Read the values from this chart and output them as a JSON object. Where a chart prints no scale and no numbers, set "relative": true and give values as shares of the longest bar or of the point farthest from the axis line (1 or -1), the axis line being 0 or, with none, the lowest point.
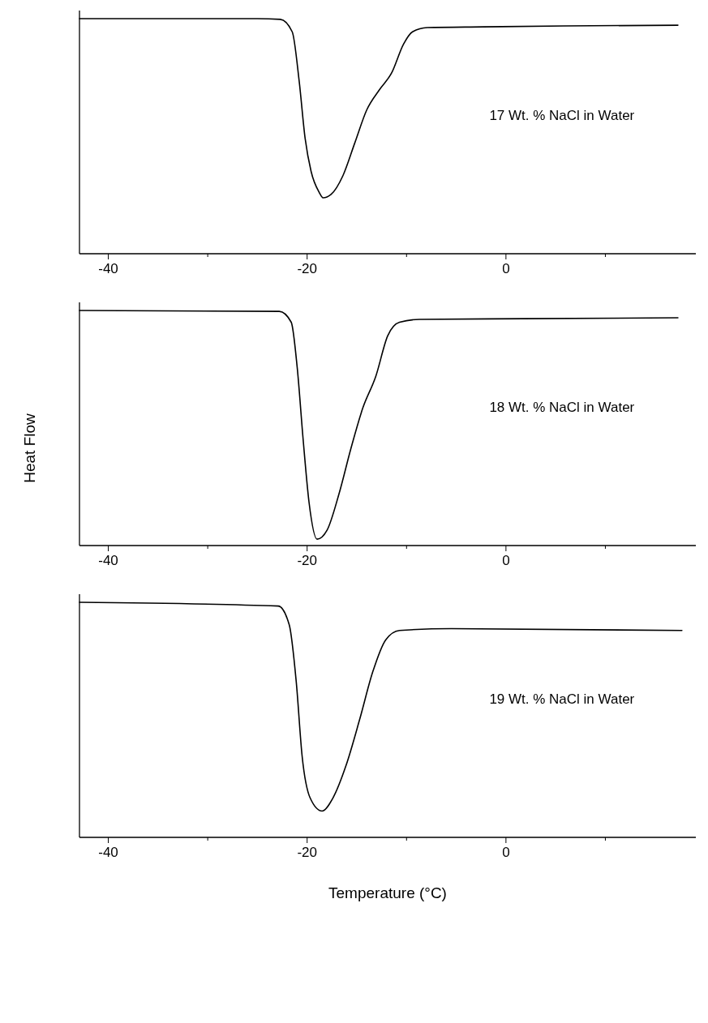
{
  "chart_data": [
    {
      "type": "line",
      "relative": true,
      "xlim": [
        -42.9,
        19.1
      ],
      "xticks": [
        -40,
        {
          "value": -30,
          "label": null
        },
        -20,
        {
          "value": -10,
          "label": null
        },
        0,
        {
          "value": 10,
          "label": null
        }
      ],
      "tick_labels": "x",
      "annotations": [
        "17 Wt. % NaCl in Water"
      ],
      "series": [
        {
          "color": "#000000",
          "x": [
            -42.9,
            -25,
            -22.7,
            -21.5,
            -20.8,
            -20.2,
            -19.6,
            -18.8,
            -18.4,
            -17.6,
            -16.4,
            -15.2,
            -14.0,
            -12.7,
            -11.5,
            -10.3,
            -9.4,
            -7.9,
            -2.3,
            5.8,
            17.3
          ],
          "values": [
            1.0,
            1.0,
            0.997,
            0.944,
            0.734,
            0.49,
            0.35,
            0.262,
            0.238,
            0.252,
            0.332,
            0.472,
            0.612,
            0.699,
            0.769,
            0.892,
            0.944,
            0.962,
            0.965,
            0.969,
            0.972
          ]
        }
      ]
    },
    {
      "type": "line",
      "relative": true,
      "ylabel": "Heat Flow",
      "xlim": [
        -42.9,
        19.1
      ],
      "xticks": [
        -40,
        {
          "value": -30,
          "label": null
        },
        -20,
        {
          "value": -10,
          "label": null
        },
        0,
        {
          "value": 10,
          "label": null
        }
      ],
      "tick_labels": "x",
      "annotations": [
        "18 Wt. % NaCl in Water"
      ],
      "series": [
        {
          "color": "#000000",
          "x": [
            -42.9,
            -22.8,
            -21.6,
            -21.0,
            -20.4,
            -19.8,
            -19.0,
            -18.0,
            -16.8,
            -15.6,
            -14.4,
            -13.1,
            -11.9,
            -10.7,
            -8.7,
            1.8,
            17.3
          ],
          "values": [
            1.0,
            0.996,
            0.95,
            0.758,
            0.45,
            0.181,
            0.027,
            0.065,
            0.219,
            0.412,
            0.585,
            0.719,
            0.892,
            0.95,
            0.962,
            0.965,
            0.969
          ]
        }
      ]
    },
    {
      "type": "line",
      "relative": true,
      "xlabel": "Temperature (°C)",
      "xlim": [
        -42.9,
        19.1
      ],
      "xticks": [
        -40,
        {
          "value": -30,
          "label": null
        },
        -20,
        {
          "value": -10,
          "label": null
        },
        0,
        {
          "value": 10,
          "label": null
        }
      ],
      "tick_labels": "x",
      "annotations": [
        "19 Wt. % NaCl in Water"
      ],
      "series": [
        {
          "color": "#000000",
          "x": [
            -42.9,
            -22.9,
            -21.8,
            -21.1,
            -20.5,
            -19.7,
            -18.5,
            -17.4,
            -16.1,
            -14.7,
            -13.4,
            -12.1,
            -10.7,
            -5.5,
            17.7
          ],
          "values": [
            1.0,
            0.984,
            0.904,
            0.664,
            0.344,
            0.168,
            0.112,
            0.168,
            0.304,
            0.504,
            0.704,
            0.84,
            0.88,
            0.888,
            0.88
          ]
        }
      ]
    }
  ]
}
